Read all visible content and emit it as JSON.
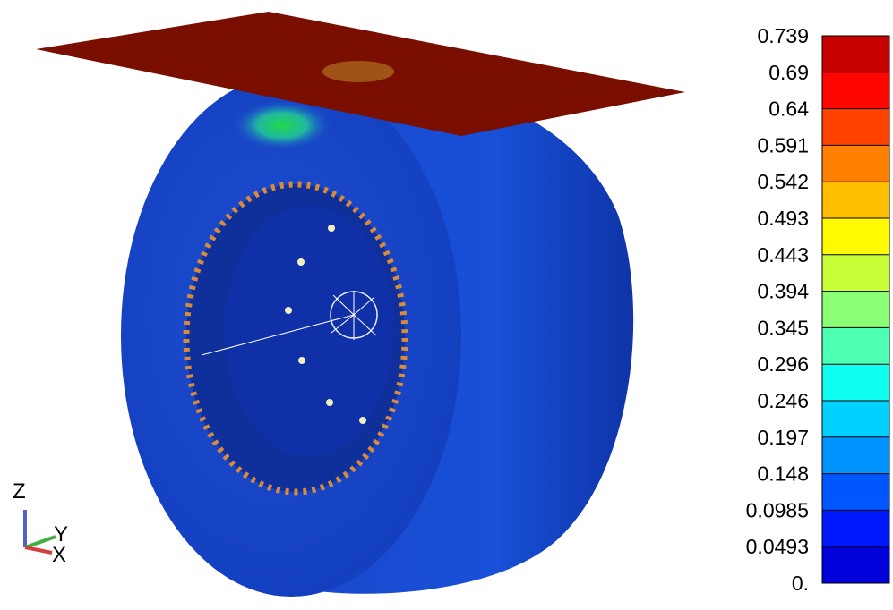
{
  "legend": {
    "labels": [
      "0.739",
      "0.69",
      "0.64",
      "0.591",
      "0.542",
      "0.493",
      "0.443",
      "0.394",
      "0.345",
      "0.296",
      "0.246",
      "0.197",
      "0.148",
      "0.0985",
      "0.0493",
      "0."
    ]
  },
  "axes_triad": {
    "z": "Z",
    "y": "Y",
    "x": "X"
  }
}
